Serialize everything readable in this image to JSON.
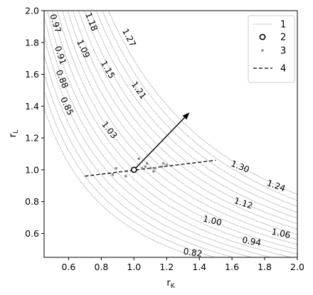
{
  "chart_data": {
    "type": "contour",
    "xlabel": "r",
    "xlabel_sub": "K",
    "ylabel": "r",
    "ylabel_sub": "L",
    "xlim": [
      0.45,
      2.0
    ],
    "ylim": [
      0.45,
      2.0
    ],
    "xticks": [
      0.6,
      0.8,
      1.0,
      1.2,
      1.4,
      1.6,
      1.8,
      2.0
    ],
    "yticks": [
      0.6,
      0.8,
      1.0,
      1.2,
      1.4,
      1.6,
      1.8,
      2.0
    ],
    "tick_format_decimals": 1,
    "contour_levels": [
      0.79,
      0.82,
      0.85,
      0.88,
      0.91,
      0.94,
      0.97,
      1.0,
      1.03,
      1.06,
      1.09,
      1.12,
      1.15,
      1.18,
      1.21,
      1.24,
      1.27,
      1.3
    ],
    "contour_labels": [
      {
        "text": "0.97",
        "x": 0.52,
        "y": 1.92,
        "angle": 72
      },
      {
        "text": "0.91",
        "x": 0.55,
        "y": 1.72,
        "angle": 72
      },
      {
        "text": "0.88",
        "x": 0.56,
        "y": 1.57,
        "angle": 68
      },
      {
        "text": "0.85",
        "x": 0.59,
        "y": 1.4,
        "angle": 65
      },
      {
        "text": "1.18",
        "x": 0.74,
        "y": 1.93,
        "angle": 68
      },
      {
        "text": "1.09",
        "x": 0.69,
        "y": 1.76,
        "angle": 65
      },
      {
        "text": "1.15",
        "x": 0.84,
        "y": 1.63,
        "angle": 60
      },
      {
        "text": "1.27",
        "x": 0.97,
        "y": 1.83,
        "angle": 62
      },
      {
        "text": "1.21",
        "x": 1.03,
        "y": 1.5,
        "angle": 55
      },
      {
        "text": "1.03",
        "x": 0.85,
        "y": 1.25,
        "angle": 52
      },
      {
        "text": "1.30",
        "x": 1.65,
        "y": 1.02,
        "angle": 22
      },
      {
        "text": "1.24",
        "x": 1.87,
        "y": 0.9,
        "angle": 20
      },
      {
        "text": "1.12",
        "x": 1.67,
        "y": 0.79,
        "angle": 18
      },
      {
        "text": "1.00",
        "x": 1.48,
        "y": 0.68,
        "angle": 14
      },
      {
        "text": "1.06",
        "x": 1.9,
        "y": 0.6,
        "angle": 12
      },
      {
        "text": "0.94",
        "x": 1.72,
        "y": 0.55,
        "angle": 10
      },
      {
        "text": "0.82",
        "x": 1.36,
        "y": 0.48,
        "angle": 8
      }
    ],
    "series": [
      {
        "name": "1",
        "kind": "contour_lines",
        "color": "#999999"
      },
      {
        "name": "2",
        "kind": "reference_point",
        "points": [
          [
            1.0,
            1.0
          ]
        ]
      },
      {
        "name": "3",
        "kind": "scatter",
        "color": "#888888",
        "points": [
          [
            0.87,
            0.97
          ],
          [
            0.89,
            1.01
          ],
          [
            0.95,
            0.96
          ],
          [
            1.03,
            1.07
          ],
          [
            1.05,
            1.01
          ],
          [
            1.07,
            1.02
          ],
          [
            1.1,
            1.01
          ],
          [
            1.12,
            0.99
          ],
          [
            1.13,
            1.01
          ],
          [
            1.17,
            1.02
          ],
          [
            1.18,
            1.04
          ],
          [
            1.2,
            1.03
          ],
          [
            1.08,
            1.04
          ]
        ]
      },
      {
        "name": "4",
        "kind": "dashed_line",
        "points": [
          [
            0.7,
            0.96
          ],
          [
            1.5,
            1.06
          ]
        ]
      }
    ],
    "arrow": {
      "from": [
        1.0,
        1.0
      ],
      "to": [
        1.34,
        1.36
      ]
    },
    "legend": {
      "position": "top-right",
      "entries": [
        "1",
        "2",
        "3",
        "4"
      ]
    }
  }
}
